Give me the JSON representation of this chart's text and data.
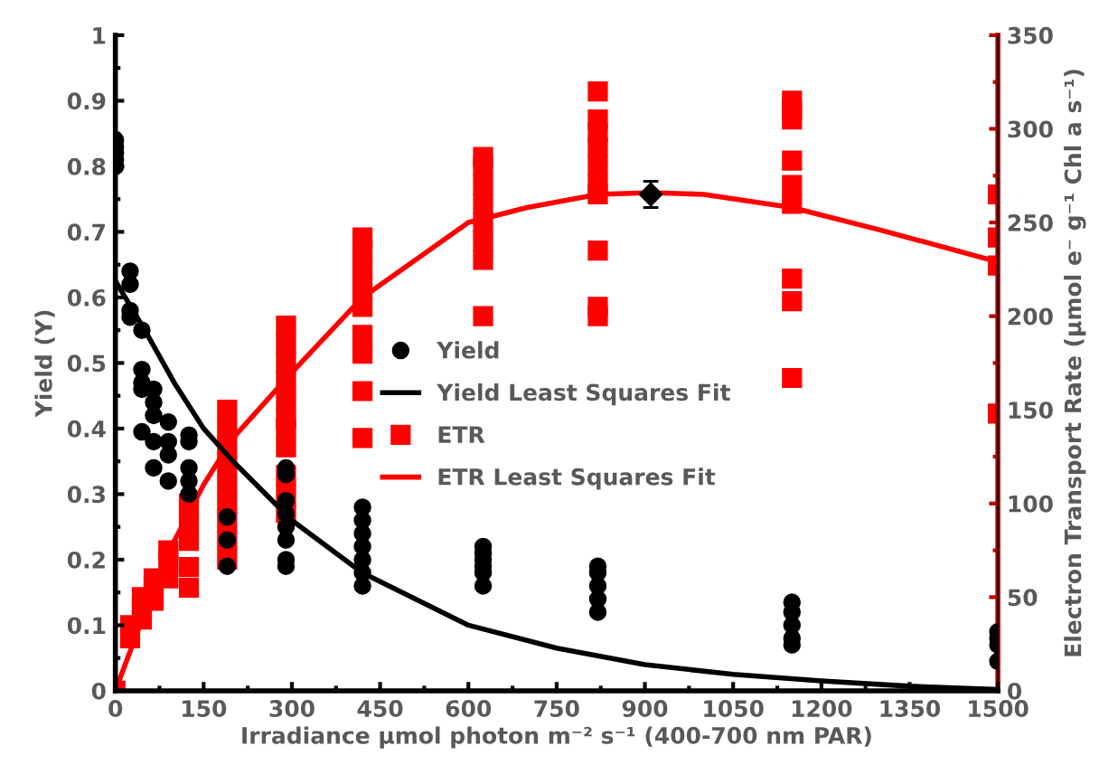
{
  "chart_data": {
    "type": "scatter",
    "xlabel": "Irradiance µmol photon m⁻² s⁻¹ (400-700 nm PAR)",
    "ylabel": "Yield (Y)",
    "y2label": "Electron Transport Rate (µmol e⁻ g⁻¹ Chl a s⁻¹)",
    "xlim": [
      0,
      1500
    ],
    "xticks": [
      0,
      150,
      300,
      450,
      600,
      750,
      900,
      1050,
      1200,
      1350,
      1500
    ],
    "ylim": [
      0,
      1
    ],
    "yticks": [
      0,
      0.1,
      0.2,
      0.3,
      0.4,
      0.5,
      0.6,
      0.7,
      0.8,
      0.9,
      1
    ],
    "y2lim": [
      0,
      350
    ],
    "y2ticks": [
      0,
      50,
      100,
      150,
      200,
      250,
      300,
      350
    ],
    "grid": false,
    "legend": "center",
    "series": [
      {
        "name": "Yield",
        "marker": "circle",
        "color": "#000000",
        "x": [
          0,
          0,
          0,
          0,
          0,
          25,
          25,
          25,
          25,
          45,
          45,
          45,
          45,
          45,
          65,
          65,
          65,
          65,
          65,
          90,
          90,
          90,
          90,
          125,
          125,
          125,
          125,
          125,
          190,
          190,
          190,
          290,
          290,
          290,
          290,
          290,
          290,
          290,
          290,
          420,
          420,
          420,
          420,
          420,
          420,
          420,
          625,
          625,
          625,
          625,
          625,
          625,
          820,
          820,
          820,
          820,
          820,
          1150,
          1150,
          1150,
          1150,
          1150,
          1500,
          1500,
          1500,
          1500
        ],
        "values": [
          0.84,
          0.83,
          0.82,
          0.81,
          0.8,
          0.64,
          0.62,
          0.58,
          0.57,
          0.55,
          0.49,
          0.47,
          0.46,
          0.395,
          0.46,
          0.44,
          0.42,
          0.38,
          0.34,
          0.41,
          0.38,
          0.36,
          0.32,
          0.39,
          0.38,
          0.34,
          0.32,
          0.3,
          0.265,
          0.23,
          0.19,
          0.34,
          0.33,
          0.29,
          0.27,
          0.25,
          0.23,
          0.2,
          0.19,
          0.28,
          0.26,
          0.24,
          0.22,
          0.2,
          0.18,
          0.16,
          0.22,
          0.21,
          0.2,
          0.19,
          0.18,
          0.16,
          0.19,
          0.18,
          0.16,
          0.14,
          0.12,
          0.135,
          0.12,
          0.1,
          0.08,
          0.07,
          0.09,
          0.08,
          0.07,
          0.045
        ]
      },
      {
        "name": "Yield Least Squares Fit",
        "type": "line",
        "marker": "none",
        "color": "#000000",
        "x": [
          0,
          50,
          100,
          150,
          200,
          300,
          420,
          600,
          750,
          900,
          1050,
          1200,
          1350,
          1500
        ],
        "values": [
          0.625,
          0.55,
          0.47,
          0.4,
          0.35,
          0.26,
          0.18,
          0.1,
          0.065,
          0.04,
          0.025,
          0.015,
          0.007,
          0.002
        ]
      },
      {
        "name": "ETR",
        "marker": "square",
        "axis": "y2",
        "color": "#ff0000",
        "x": [
          0,
          25,
          25,
          45,
          45,
          45,
          65,
          65,
          65,
          90,
          90,
          90,
          125,
          125,
          125,
          125,
          125,
          190,
          190,
          190,
          190,
          190,
          190,
          190,
          190,
          190,
          290,
          290,
          290,
          290,
          290,
          290,
          290,
          290,
          290,
          290,
          290,
          420,
          420,
          420,
          420,
          420,
          420,
          420,
          420,
          420,
          625,
          625,
          625,
          625,
          625,
          625,
          625,
          625,
          820,
          820,
          820,
          820,
          820,
          820,
          820,
          820,
          820,
          820,
          1150,
          1150,
          1150,
          1150,
          1150,
          1150,
          1150,
          1150,
          1150,
          1500,
          1500,
          1500,
          1500
        ],
        "values": [
          0,
          35,
          28,
          50,
          45,
          38,
          60,
          55,
          48,
          75,
          70,
          60,
          100,
          90,
          80,
          66,
          55,
          150,
          140,
          130,
          120,
          110,
          100,
          90,
          80,
          70,
          195,
          185,
          175,
          165,
          155,
          145,
          140,
          130,
          115,
          105,
          95,
          242,
          235,
          225,
          215,
          205,
          190,
          180,
          160,
          135,
          285,
          280,
          270,
          260,
          250,
          240,
          230,
          200,
          320,
          305,
          298,
          290,
          280,
          270,
          265,
          235,
          205,
          200,
          315,
          310,
          305,
          283,
          270,
          260,
          220,
          208,
          167,
          265,
          242,
          227,
          148
        ]
      },
      {
        "name": "ETR Least Squares Fit",
        "type": "line",
        "marker": "none",
        "axis": "y2",
        "color": "#ff0000",
        "x": [
          0,
          50,
          100,
          150,
          200,
          300,
          420,
          600,
          700,
          820,
          910,
          1000,
          1150,
          1300,
          1500
        ],
        "values": [
          0,
          42,
          80,
          110,
          135,
          170,
          210,
          250,
          258,
          265,
          266,
          265,
          258,
          246,
          229
        ]
      },
      {
        "marker": "diamond",
        "axis": "y2",
        "color": "#000000",
        "x": [
          910
        ],
        "values": [
          265
        ],
        "errors": [
          7
        ]
      }
    ]
  }
}
